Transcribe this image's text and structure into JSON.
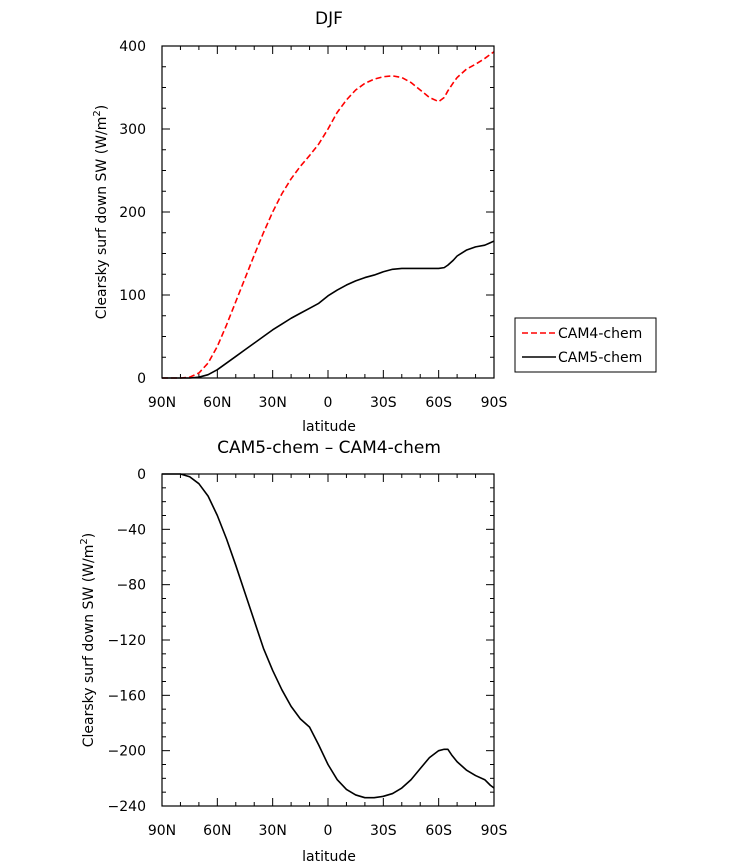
{
  "chart_data": [
    {
      "type": "line",
      "title": "DJF",
      "xlabel": "latitude",
      "ylabel": "Clearsky surf down SW (W/m²)",
      "ylabel_base": "Clearsky surf down SW (W/m",
      "ylabel_sup": "2",
      "ylabel_end": ")",
      "xlim": [
        -90,
        90
      ],
      "ylim": [
        0,
        400
      ],
      "xticks": [
        -90,
        -60,
        -30,
        0,
        30,
        60,
        90
      ],
      "xtick_labels": [
        "90N",
        "60N",
        "30N",
        "0",
        "30S",
        "60S",
        "90S"
      ],
      "yticks": [
        0,
        100,
        200,
        300,
        400
      ],
      "ytick_labels": [
        "0",
        "100",
        "200",
        "300",
        "400"
      ],
      "legend": {
        "placement": "right-middle",
        "entries": [
          "CAM4-chem",
          "CAM5-chem"
        ]
      },
      "series": [
        {
          "name": "CAM4-chem",
          "color": "#ff0000",
          "dash": "dashed",
          "x": [
            -90,
            -80,
            -75,
            -70,
            -65,
            -60,
            -55,
            -50,
            -45,
            -40,
            -35,
            -30,
            -25,
            -20,
            -15,
            -10,
            -5,
            0,
            5,
            10,
            15,
            20,
            25,
            30,
            35,
            40,
            45,
            50,
            55,
            60,
            63,
            65,
            68,
            70,
            75,
            80,
            85,
            88,
            90
          ],
          "values": [
            0,
            0,
            1,
            6,
            18,
            38,
            64,
            92,
            120,
            148,
            175,
            200,
            222,
            240,
            255,
            268,
            282,
            300,
            320,
            335,
            347,
            355,
            360,
            363,
            364,
            362,
            356,
            347,
            338,
            333,
            338,
            346,
            356,
            362,
            372,
            378,
            385,
            390,
            393
          ]
        },
        {
          "name": "CAM5-chem",
          "color": "#000000",
          "dash": "solid",
          "x": [
            -90,
            -75,
            -70,
            -65,
            -60,
            -55,
            -50,
            -45,
            -40,
            -35,
            -30,
            -25,
            -20,
            -15,
            -10,
            -5,
            0,
            5,
            10,
            15,
            20,
            25,
            30,
            35,
            40,
            45,
            50,
            55,
            60,
            63,
            65,
            68,
            70,
            75,
            80,
            85,
            88,
            90
          ],
          "values": [
            0,
            0,
            1,
            4,
            10,
            18,
            26,
            34,
            42,
            50,
            58,
            65,
            72,
            78,
            84,
            90,
            99,
            106,
            112,
            117,
            121,
            124,
            128,
            131,
            132,
            132,
            132,
            132,
            132,
            133,
            136,
            142,
            147,
            154,
            158,
            160,
            163,
            165
          ]
        }
      ]
    },
    {
      "type": "line",
      "title": "CAM5-chem  –  CAM4-chem",
      "xlabel": "latitude",
      "ylabel": "Clearsky surf down SW (W/m²)",
      "ylabel_base": "Clearsky surf down SW (W/m",
      "ylabel_sup": "2",
      "ylabel_end": ")",
      "xlim": [
        -90,
        90
      ],
      "ylim": [
        -240,
        0
      ],
      "xticks": [
        -90,
        -60,
        -30,
        0,
        30,
        60,
        90
      ],
      "xtick_labels": [
        "90N",
        "60N",
        "30N",
        "0",
        "30S",
        "60S",
        "90S"
      ],
      "yticks": [
        0,
        -40,
        -80,
        -120,
        -160,
        -200,
        -240
      ],
      "ytick_labels": [
        "0",
        "−40",
        "−80",
        "−120",
        "−160",
        "−200",
        "−240"
      ],
      "series": [
        {
          "name": "CAM5-chem - CAM4-chem",
          "color": "#000000",
          "dash": "solid",
          "x": [
            -90,
            -80,
            -75,
            -70,
            -65,
            -60,
            -55,
            -50,
            -45,
            -40,
            -35,
            -30,
            -25,
            -20,
            -15,
            -10,
            -5,
            0,
            5,
            10,
            15,
            20,
            25,
            30,
            35,
            40,
            45,
            50,
            55,
            60,
            63,
            65,
            67,
            70,
            75,
            80,
            85,
            88,
            90
          ],
          "values": [
            0,
            0,
            -2,
            -7,
            -16,
            -30,
            -47,
            -66,
            -86,
            -106,
            -126,
            -142,
            -156,
            -168,
            -177,
            -183,
            -196,
            -210,
            -221,
            -228,
            -232,
            -234,
            -234,
            -233,
            -231,
            -227,
            -221,
            -213,
            -205,
            -200,
            -199,
            -199,
            -203,
            -208,
            -214,
            -218,
            -221,
            -225,
            -227
          ]
        }
      ]
    }
  ]
}
